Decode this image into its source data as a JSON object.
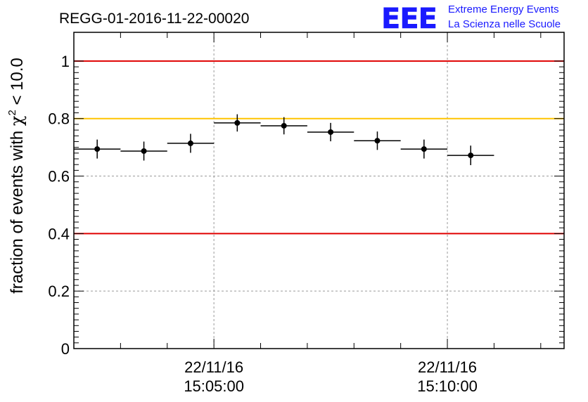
{
  "title": "REGG-01-2016-11-22-00020",
  "logo": {
    "letters": "EEE",
    "line1": "Extreme Energy Events",
    "line2": "La Scienza nelle Scuole",
    "color": "#1a1aff"
  },
  "colors": {
    "red_line": "#e00000",
    "yellow_line": "#ffc400",
    "points": "#000000",
    "grid": "#9a9a9a"
  },
  "chart_data": {
    "type": "scatter",
    "title": "REGG-01-2016-11-22-00020",
    "ylabel_prefix": "fraction of events with ",
    "ylabel_symbol": "χ",
    "ylabel_sup": "2",
    "ylabel_suffix": " < 10.0",
    "xlabel": "",
    "ylim": [
      0,
      1.1
    ],
    "x_range": [
      "2016-11-22 15:02:00",
      "2016-11-22 15:12:30"
    ],
    "yticks": [
      "0",
      "0.2",
      "0.4",
      "0.6",
      "0.8",
      "1"
    ],
    "xticks": [
      {
        "time": "15:05:00",
        "date": "22/11/16",
        "time_label": "15:05:00"
      },
      {
        "time": "15:10:00",
        "date": "22/11/16",
        "time_label": "15:10:00"
      }
    ],
    "grid": true,
    "reference_lines": [
      {
        "y": 1.0,
        "color": "red"
      },
      {
        "y": 0.8,
        "color": "yellow"
      },
      {
        "y": 0.4,
        "color": "red"
      }
    ],
    "series": [
      {
        "points": [
          {
            "t": "15:02:30",
            "y": 0.694,
            "yerr": 0.033,
            "xerr_s": 30
          },
          {
            "t": "15:03:30",
            "y": 0.687,
            "yerr": 0.033,
            "xerr_s": 30
          },
          {
            "t": "15:04:30",
            "y": 0.714,
            "yerr": 0.033,
            "xerr_s": 30
          },
          {
            "t": "15:05:30",
            "y": 0.785,
            "yerr": 0.03,
            "xerr_s": 30
          },
          {
            "t": "15:06:30",
            "y": 0.775,
            "yerr": 0.03,
            "xerr_s": 30
          },
          {
            "t": "15:07:30",
            "y": 0.753,
            "yerr": 0.032,
            "xerr_s": 30
          },
          {
            "t": "15:08:30",
            "y": 0.723,
            "yerr": 0.032,
            "xerr_s": 30
          },
          {
            "t": "15:09:30",
            "y": 0.694,
            "yerr": 0.033,
            "xerr_s": 30
          },
          {
            "t": "15:10:30",
            "y": 0.672,
            "yerr": 0.034,
            "xerr_s": 30
          }
        ]
      }
    ]
  }
}
